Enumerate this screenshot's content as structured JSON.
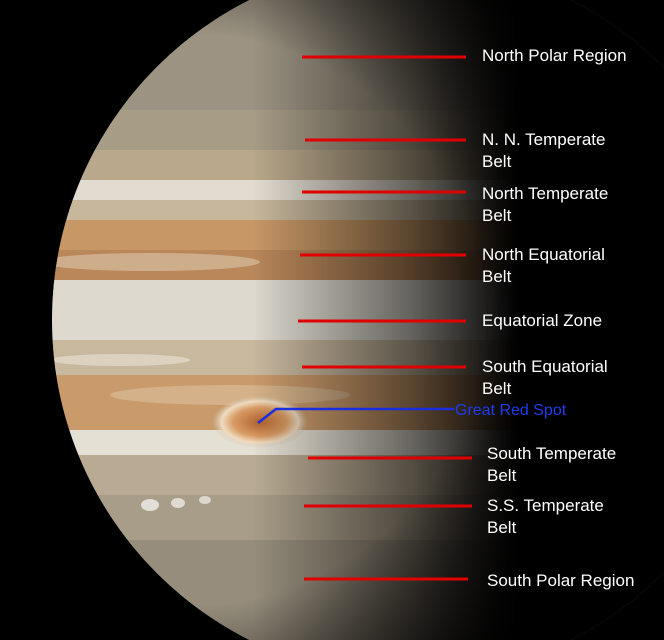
{
  "image": {
    "subject": "Jupiter hemisphere",
    "background_color": "#000000",
    "label_line_color": "#e00000",
    "highlight_line_color": "#1a2ee0"
  },
  "labels": [
    {
      "id": "north-polar-region",
      "text": "North Polar Region"
    },
    {
      "id": "nn-temperate-belt",
      "text": "N. N. Temperate\nBelt"
    },
    {
      "id": "north-temperate-belt",
      "text": "North Temperate\nBelt"
    },
    {
      "id": "north-equatorial-belt",
      "text": "North Equatorial\nBelt"
    },
    {
      "id": "equatorial-zone",
      "text": "Equatorial Zone"
    },
    {
      "id": "south-equatorial-belt",
      "text": "South Equatorial\nBelt"
    },
    {
      "id": "great-red-spot",
      "text": "Great Red Spot"
    },
    {
      "id": "south-temperate-belt",
      "text": "South Temperate\nBelt"
    },
    {
      "id": "ss-temperate-belt",
      "text": "S.S. Temperate\nBelt"
    },
    {
      "id": "south-polar-region",
      "text": "South Polar Region"
    }
  ]
}
